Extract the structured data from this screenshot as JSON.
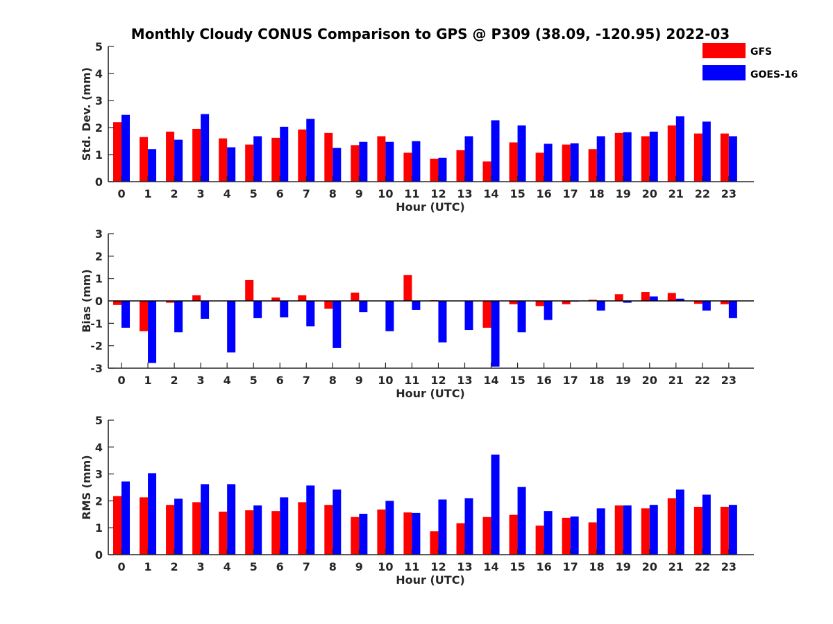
{
  "title": "Monthly Cloudy CONUS Comparison to GPS @ P309 (38.09, -120.95) 2022-03",
  "colors": {
    "gfs": "#ff0000",
    "goes": "#0000ff",
    "axis": "#262626"
  },
  "legend": {
    "location": "top-right",
    "entries": [
      "GFS",
      "GOES-16"
    ]
  },
  "chart_data": [
    {
      "type": "bar",
      "title": "Monthly Cloudy CONUS Comparison to GPS @ P309 (38.09, -120.95) 2022-03",
      "xlabel": "Hour (UTC)",
      "ylabel": "Std. Dev. (mm)",
      "ylim": [
        0,
        5
      ],
      "yticks": [
        0,
        1,
        2,
        3,
        4,
        5
      ],
      "categories": [
        "0",
        "1",
        "2",
        "3",
        "4",
        "5",
        "6",
        "7",
        "8",
        "9",
        "10",
        "11",
        "12",
        "13",
        "14",
        "15",
        "16",
        "17",
        "18",
        "19",
        "20",
        "21",
        "22",
        "23"
      ],
      "series": [
        {
          "name": "GFS",
          "values": [
            2.2,
            1.65,
            1.85,
            1.95,
            1.6,
            1.37,
            1.62,
            1.93,
            1.8,
            1.35,
            1.68,
            1.07,
            0.85,
            1.17,
            0.75,
            1.45,
            1.07,
            1.37,
            1.2,
            1.8,
            1.68,
            2.08,
            1.78,
            1.78
          ]
        },
        {
          "name": "GOES-16",
          "values": [
            2.47,
            1.2,
            1.55,
            2.5,
            1.27,
            1.68,
            2.03,
            2.32,
            1.25,
            1.47,
            1.47,
            1.5,
            0.88,
            1.68,
            2.27,
            2.08,
            1.4,
            1.42,
            1.68,
            1.83,
            1.85,
            2.42,
            2.22,
            1.68
          ]
        }
      ]
    },
    {
      "type": "bar",
      "xlabel": "Hour (UTC)",
      "ylabel": "Bias (mm)",
      "ylim": [
        -3,
        3
      ],
      "yticks": [
        -3,
        -2,
        -1,
        0,
        1,
        2,
        3
      ],
      "categories": [
        "0",
        "1",
        "2",
        "3",
        "4",
        "5",
        "6",
        "7",
        "8",
        "9",
        "10",
        "11",
        "12",
        "13",
        "14",
        "15",
        "16",
        "17",
        "18",
        "19",
        "20",
        "21",
        "22",
        "23"
      ],
      "series": [
        {
          "name": "GFS",
          "values": [
            -0.18,
            -1.35,
            -0.08,
            0.25,
            0.0,
            0.93,
            0.15,
            0.25,
            -0.35,
            0.37,
            0.0,
            1.15,
            0.03,
            0.0,
            -1.2,
            -0.15,
            -0.23,
            -0.15,
            0.05,
            0.3,
            0.4,
            0.35,
            -0.13,
            -0.15
          ]
        },
        {
          "name": "GOES-16",
          "values": [
            -1.2,
            -2.77,
            -1.4,
            -0.8,
            -2.3,
            -0.77,
            -0.73,
            -1.13,
            -2.1,
            -0.5,
            -1.35,
            -0.4,
            -1.85,
            -1.3,
            -2.93,
            -1.4,
            -0.85,
            -0.03,
            -0.43,
            -0.08,
            0.2,
            0.1,
            -0.43,
            -0.77
          ]
        }
      ]
    },
    {
      "type": "bar",
      "xlabel": "Hour (UTC)",
      "ylabel": "RMS (mm)",
      "ylim": [
        0,
        5
      ],
      "yticks": [
        0,
        1,
        2,
        3,
        4,
        5
      ],
      "categories": [
        "0",
        "1",
        "2",
        "3",
        "4",
        "5",
        "6",
        "7",
        "8",
        "9",
        "10",
        "11",
        "12",
        "13",
        "14",
        "15",
        "16",
        "17",
        "18",
        "19",
        "20",
        "21",
        "22",
        "23"
      ],
      "series": [
        {
          "name": "GFS",
          "values": [
            2.18,
            2.13,
            1.85,
            1.95,
            1.6,
            1.65,
            1.62,
            1.95,
            1.85,
            1.4,
            1.68,
            1.57,
            0.87,
            1.17,
            1.4,
            1.48,
            1.08,
            1.37,
            1.2,
            1.83,
            1.72,
            2.1,
            1.78,
            1.78
          ]
        },
        {
          "name": "GOES-16",
          "values": [
            2.72,
            3.03,
            2.08,
            2.62,
            2.62,
            1.83,
            2.13,
            2.57,
            2.42,
            1.52,
            2.0,
            1.55,
            2.05,
            2.1,
            3.72,
            2.52,
            1.62,
            1.42,
            1.72,
            1.83,
            1.85,
            2.42,
            2.23,
            1.85
          ]
        }
      ]
    }
  ]
}
